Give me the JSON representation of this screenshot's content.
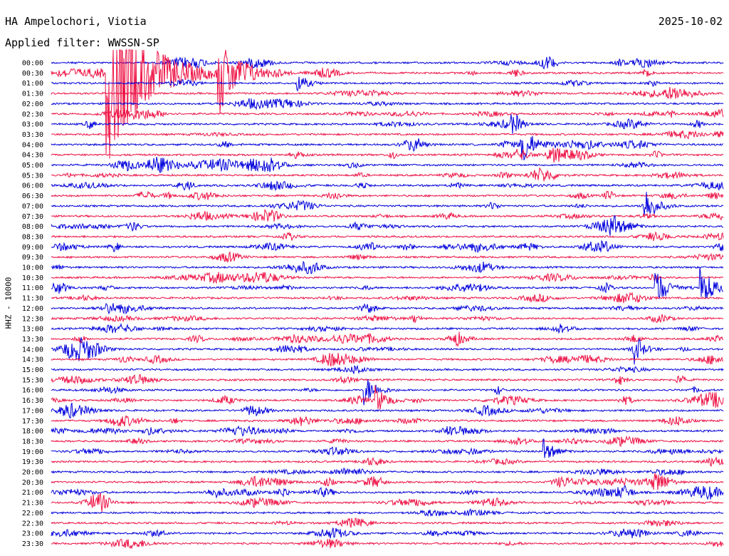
{
  "header": {
    "station": "HA Ampelochori, Viotia",
    "filter": "Applied filter: WWSSN-SP",
    "date": "2025-10-02"
  },
  "chart_data": {
    "type": "line",
    "title": "HA Ampelochori, Viotia",
    "subtitle": "Applied filter: WWSSN-SP",
    "ylabel": "HHZ - 10000",
    "xlabel": "",
    "rows": [
      "00:00",
      "00:30",
      "01:00",
      "01:30",
      "02:00",
      "02:30",
      "03:00",
      "03:30",
      "04:00",
      "04:30",
      "05:00",
      "05:30",
      "06:00",
      "06:30",
      "07:00",
      "07:30",
      "08:00",
      "08:30",
      "09:00",
      "09:30",
      "10:00",
      "10:30",
      "11:00",
      "11:30",
      "12:00",
      "12:30",
      "13:00",
      "13:30",
      "14:00",
      "14:30",
      "15:00",
      "15:30",
      "16:00",
      "16:30",
      "17:00",
      "17:30",
      "18:00",
      "18:30",
      "19:00",
      "19:30",
      "20:00",
      "20:30",
      "21:00",
      "21:30",
      "22:00",
      "22:30",
      "23:00",
      "23:30"
    ],
    "colors": [
      "#0000dd",
      "#ee1144"
    ],
    "grid": false,
    "events": [
      {
        "row": "00:30",
        "minute": 2.5,
        "amplitude": 9.0
      },
      {
        "row": "00:30",
        "minute": 7.5,
        "amplitude": 4.0
      },
      {
        "row": "01:00",
        "minute": 11.0,
        "amplitude": 1.0
      },
      {
        "row": "04:00",
        "minute": 21.0,
        "amplitude": 2.0
      },
      {
        "row": "07:00",
        "minute": 26.5,
        "amplitude": 1.6
      },
      {
        "row": "11:00",
        "minute": 27.0,
        "amplitude": 1.8
      },
      {
        "row": "11:00",
        "minute": 29.0,
        "amplitude": 2.0
      },
      {
        "row": "14:00",
        "minute": 26.0,
        "amplitude": 1.2
      },
      {
        "row": "16:00",
        "minute": 14.0,
        "amplitude": 1.5
      },
      {
        "row": "16:30",
        "minute": 14.5,
        "amplitude": 1.4
      },
      {
        "row": "19:00",
        "minute": 22.0,
        "amplitude": 1.2
      }
    ]
  }
}
